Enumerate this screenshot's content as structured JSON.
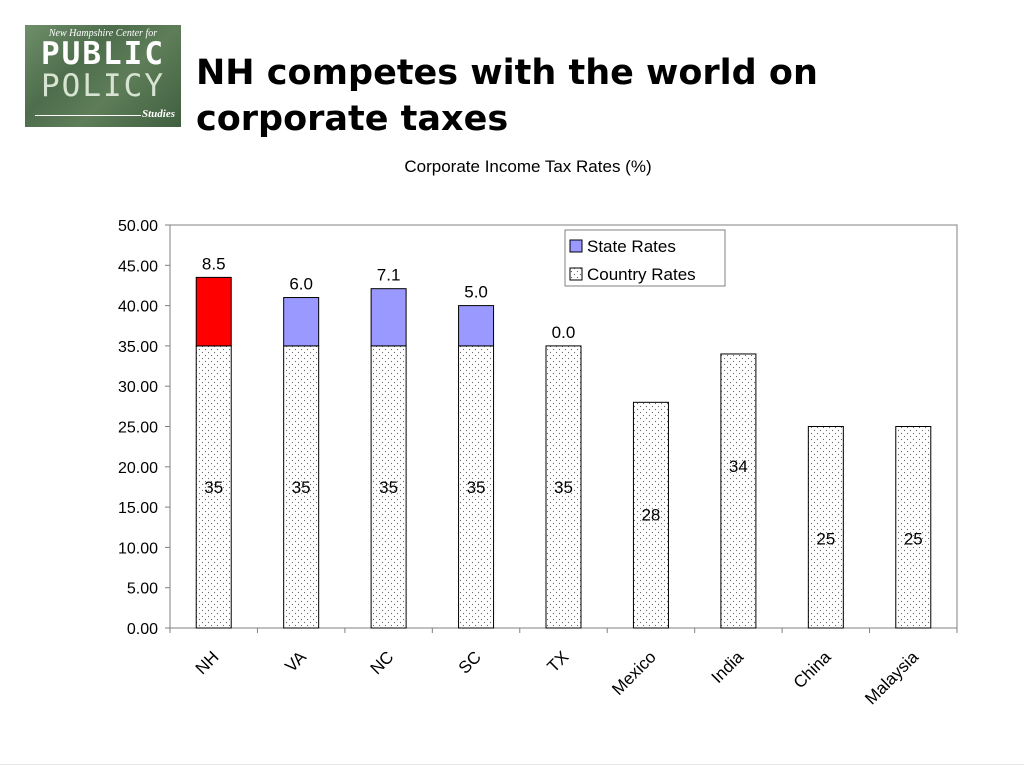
{
  "logo": {
    "line1": "New Hampshire Center for",
    "line2": "PUBLIC",
    "line3": "POLICY",
    "line4": "Studies"
  },
  "slide": {
    "title": "NH competes with the world on corporate taxes"
  },
  "colors": {
    "state_default": "#9999ff",
    "state_highlight": "#ff0000",
    "country_fill": "#ffffff",
    "dots": "#555555"
  },
  "chart_data": {
    "type": "bar",
    "stacked": true,
    "title": "Corporate Income Tax Rates (%)",
    "xlabel": "",
    "ylabel": "",
    "categories": [
      "NH",
      "VA",
      "NC",
      "SC",
      "TX",
      "Mexico",
      "India",
      "China",
      "Malaysia"
    ],
    "series": [
      {
        "name": "Country Rates",
        "values": [
          35,
          35,
          35,
          35,
          35,
          28,
          34,
          25,
          25
        ],
        "labels": [
          "35",
          "35",
          "35",
          "35",
          "35",
          "28",
          "34",
          "25",
          "25"
        ]
      },
      {
        "name": "State Rates",
        "values": [
          8.5,
          6.0,
          7.1,
          5.0,
          0.0,
          null,
          null,
          null,
          null
        ],
        "labels": [
          "8.5",
          "6.0",
          "7.1",
          "5.0",
          "0.0",
          "",
          "",
          "",
          ""
        ]
      }
    ],
    "ylim": [
      0,
      50
    ],
    "yticks": [
      "0.00",
      "5.00",
      "10.00",
      "15.00",
      "20.00",
      "25.00",
      "30.00",
      "35.00",
      "40.00",
      "45.00",
      "50.00"
    ],
    "legend": {
      "placement": "top-right",
      "entries": [
        "State Rates",
        "Country Rates"
      ]
    },
    "highlight_category": "NH",
    "grid": false
  }
}
